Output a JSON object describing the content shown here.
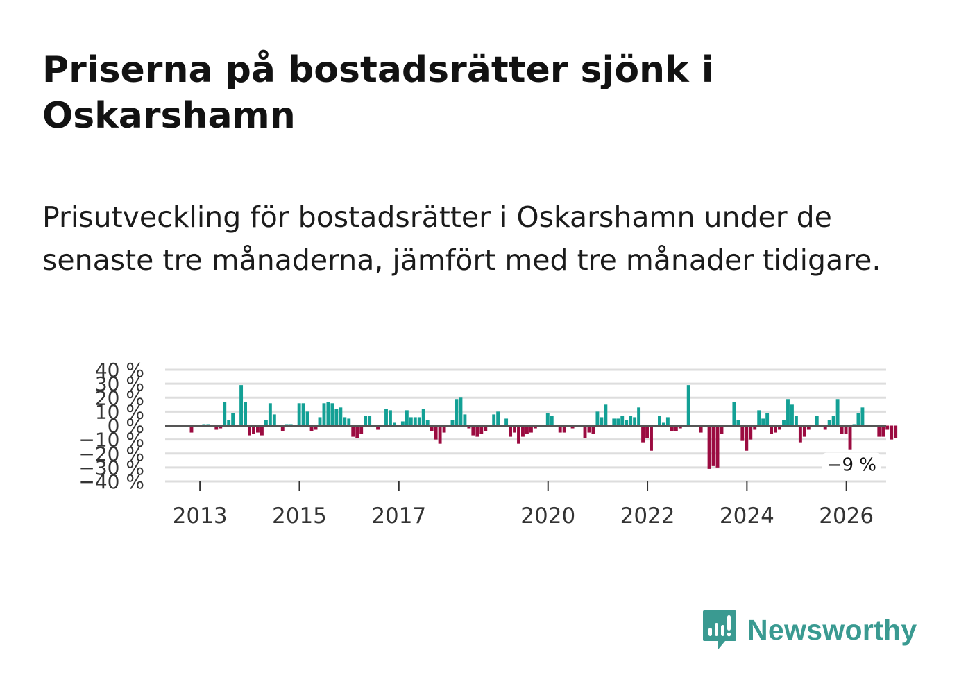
{
  "title": "Priserna på bostadsrätter sjönk i Oskarshamn",
  "subtitle": "Prisutveckling för bostadsrätter i Oskarshamn under de senaste tre månaderna, jämfört med tre månader tidigare.",
  "brand": {
    "name": "Newsworthy",
    "color": "#3a9a91"
  },
  "colors": {
    "positive": "#13a095",
    "negative": "#9b0b40",
    "grid": "#dddddd",
    "zero_line": "#555555"
  },
  "chart_data": {
    "type": "bar",
    "title": "Priserna på bostadsrätter sjönk i Oskarshamn",
    "xlabel": "",
    "ylabel": "",
    "ylim": [
      -40,
      40
    ],
    "yticks": [
      40,
      30,
      20,
      10,
      0,
      -10,
      -20,
      -30,
      -40
    ],
    "ytick_labels": [
      "40 %",
      "30 %",
      "20 %",
      "10 %",
      "0 %",
      "−10 %",
      "−20 %",
      "−30 %",
      "−40 %"
    ],
    "xlim": [
      2012.3,
      2026.8
    ],
    "xticks": [
      2013,
      2015,
      2017,
      2020,
      2022,
      2024,
      2026
    ],
    "xtick_labels": [
      "2013",
      "2015",
      "2017",
      "2020",
      "2022",
      "2024",
      "2026"
    ],
    "grid": true,
    "end_label": "−9 %",
    "series": [
      {
        "name": "Prisutveckling",
        "start": 2012.33,
        "step": 0.0833,
        "values": [
          0,
          0,
          0,
          0,
          0,
          0,
          -5,
          0,
          0,
          1,
          1,
          0,
          -3,
          -2,
          17,
          4,
          9,
          0,
          29,
          17,
          -7,
          -6,
          -5,
          -7,
          4,
          16,
          8,
          0,
          -4,
          1,
          1,
          0,
          16,
          16,
          10,
          -4,
          -3,
          6,
          16,
          17,
          16,
          12,
          13,
          6,
          5,
          -8,
          -9,
          -6,
          7,
          7,
          0,
          -3,
          0,
          12,
          11,
          2,
          -1,
          3,
          11,
          6,
          6,
          6,
          12,
          4,
          -4,
          -10,
          -13,
          -5,
          0,
          4,
          19,
          20,
          8,
          -2,
          -7,
          -8,
          -6,
          -4,
          0,
          8,
          10,
          0,
          5,
          -8,
          -5,
          -13,
          -8,
          -6,
          -5,
          -2,
          0,
          0,
          9,
          7,
          0,
          -5,
          -5,
          0,
          -2,
          0,
          -1,
          -9,
          -5,
          -6,
          10,
          6,
          15,
          0,
          5,
          5,
          7,
          4,
          7,
          6,
          13,
          -12,
          -9,
          -18,
          0,
          7,
          2,
          6,
          -4,
          -4,
          -2,
          0,
          29,
          0,
          0,
          -5,
          0,
          -31,
          -29,
          -30,
          -6,
          0,
          0,
          17,
          4,
          -11,
          -18,
          -10,
          -3,
          11,
          5,
          9,
          -6,
          -5,
          -3,
          4,
          19,
          15,
          7,
          -12,
          -8,
          -3,
          0,
          7,
          0,
          -3,
          4,
          7,
          19,
          -6,
          -6,
          -17,
          1,
          9,
          13,
          0,
          0,
          0,
          -8,
          -8,
          -3,
          -10,
          -9
        ]
      }
    ]
  }
}
